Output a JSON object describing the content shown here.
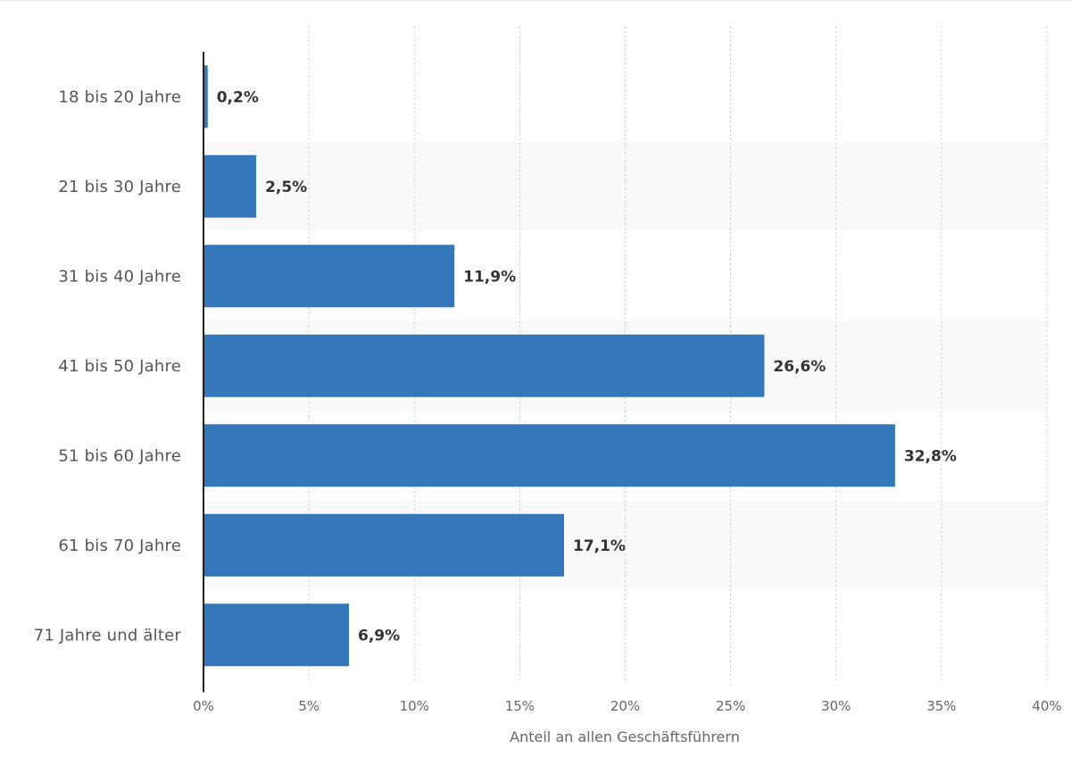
{
  "chart_data": {
    "type": "bar",
    "orientation": "horizontal",
    "title": "",
    "xlabel": "Anteil an allen Geschäftsführern",
    "ylabel": "",
    "xlim": [
      0,
      40
    ],
    "ticks": [
      0,
      5,
      10,
      15,
      20,
      25,
      30,
      35,
      40
    ],
    "tick_labels": [
      "0%",
      "5%",
      "10%",
      "15%",
      "20%",
      "25%",
      "30%",
      "35%",
      "40%"
    ],
    "grid": true,
    "categories": [
      "18 bis 20 Jahre",
      "21 bis 30 Jahre",
      "31 bis 40 Jahre",
      "41 bis 50 Jahre",
      "51 bis 60 Jahre",
      "61 bis 70 Jahre",
      "71 Jahre und älter"
    ],
    "values": [
      0.2,
      2.5,
      11.9,
      26.6,
      32.8,
      17.1,
      6.9
    ],
    "value_labels": [
      "0,2%",
      "2,5%",
      "11,9%",
      "26,6%",
      "32,8%",
      "17,1%",
      "6,9%"
    ],
    "colors": {
      "bar": "#3476ba",
      "band": "#f9f9f9",
      "grid": "#c8c8c8",
      "axis": "#222222"
    }
  }
}
